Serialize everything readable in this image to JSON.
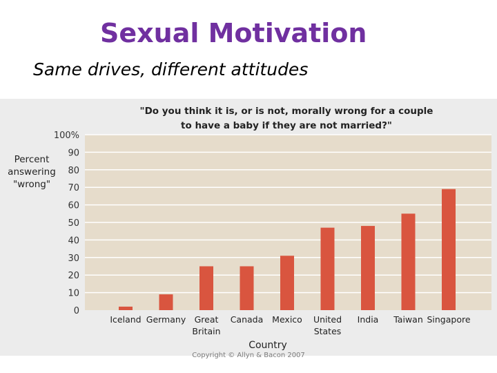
{
  "slide": {
    "title": "Sexual Motivation",
    "subtitle": "Same drives, different attitudes",
    "copyright": "Copyright © Allyn & Bacon 2007"
  },
  "colors": {
    "title": "#7030a0",
    "bar": "#d9553f",
    "plot_background": "#e6dccb",
    "figure_background": "#ececec",
    "gridline": "#ffffff"
  },
  "chart_data": {
    "type": "bar",
    "title_line1": "\"Do you think it is, or is not, morally wrong for a couple",
    "title_line2": "to have a baby if they are not married?\"",
    "ylabel_lines": [
      "Percent",
      "answering",
      "\"wrong\""
    ],
    "xlabel": "Country",
    "categories": [
      [
        "Iceland"
      ],
      [
        "Germany"
      ],
      [
        "Great",
        "Britain"
      ],
      [
        "Canada"
      ],
      [
        "Mexico"
      ],
      [
        "United",
        "States"
      ],
      [
        "India"
      ],
      [
        "Taiwan"
      ],
      [
        "Singapore"
      ]
    ],
    "values": [
      2,
      9,
      25,
      25,
      31,
      47,
      48,
      55,
      69
    ],
    "yticks": [
      "0",
      "10",
      "20",
      "30",
      "40",
      "50",
      "60",
      "70",
      "80",
      "90",
      "100%"
    ],
    "ylim": [
      0,
      100
    ],
    "grid": true
  }
}
